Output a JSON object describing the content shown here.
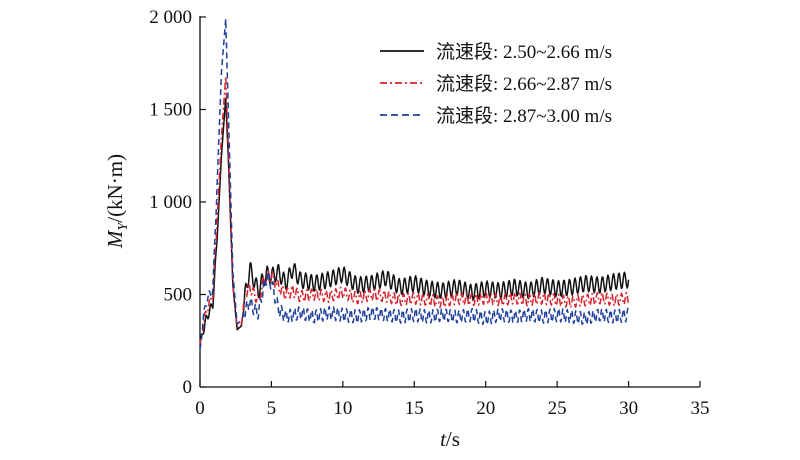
{
  "chart_data": {
    "type": "line",
    "title": "",
    "xlabel": {
      "italic": "t",
      "rest": "/s"
    },
    "ylabel": {
      "italic": "M",
      "sub": "Y",
      "rest": "/(kN·m)"
    },
    "xlim": [
      0,
      35
    ],
    "ylim": [
      0,
      2000
    ],
    "xticks": [
      0,
      5,
      10,
      15,
      20,
      25,
      30,
      35
    ],
    "xtick_labels": [
      "0",
      "5",
      "10",
      "15",
      "20",
      "25",
      "30",
      "35"
    ],
    "yticks": [
      0,
      500,
      1000,
      1500,
      2000
    ],
    "ytick_labels": [
      "0",
      "500",
      "1 000",
      "1 500",
      "2 000"
    ],
    "grid": false,
    "legend_position": "top-right",
    "series": [
      {
        "name": "流速段: 2.50~2.66 m/s",
        "color": "#111111",
        "dash": "solid",
        "peak": 1560,
        "steady_level": 540,
        "steady_amplitude": 55,
        "x": [
          0.0,
          0.2,
          0.5,
          0.9,
          1.2,
          1.5,
          1.8,
          2.0,
          2.3,
          2.6,
          2.9,
          3.2,
          3.5,
          3.8,
          4.1,
          4.4,
          4.7,
          5.0,
          5.5,
          6.0,
          6.5,
          7.0,
          8.0,
          9.0,
          10.0,
          11.0,
          12.0,
          13.0,
          14.0,
          15.0,
          16.0,
          17.0,
          18.0,
          19.0,
          20.0,
          21.0,
          22.0,
          23.0,
          24.0,
          25.0,
          26.0,
          27.0,
          28.0,
          29.0,
          30.0
        ],
        "y": [
          220,
          300,
          380,
          450,
          800,
          1250,
          1560,
          1200,
          550,
          310,
          330,
          520,
          640,
          570,
          520,
          580,
          610,
          600,
          620,
          560,
          640,
          580,
          560,
          580,
          610,
          550,
          560,
          590,
          540,
          560,
          530,
          520,
          540,
          510,
          530,
          520,
          540,
          520,
          550,
          530,
          540,
          560,
          550,
          570,
          580
        ]
      },
      {
        "name": "流速段: 2.66~2.87 m/s",
        "color": "#d8202a",
        "dash": "dashdot",
        "peak": 1680,
        "steady_level": 480,
        "steady_amplitude": 40,
        "x": [
          0.0,
          0.2,
          0.5,
          0.9,
          1.2,
          1.5,
          1.8,
          2.0,
          2.3,
          2.6,
          2.9,
          3.2,
          3.5,
          3.8,
          4.1,
          4.4,
          4.7,
          5.0,
          5.5,
          6.0,
          6.5,
          7.0,
          8.0,
          9.0,
          10.0,
          11.0,
          12.0,
          13.0,
          14.0,
          15.0,
          16.0,
          17.0,
          18.0,
          19.0,
          20.0,
          21.0,
          22.0,
          23.0,
          24.0,
          25.0,
          26.0,
          27.0,
          28.0,
          29.0,
          30.0
        ],
        "y": [
          200,
          330,
          420,
          500,
          900,
          1350,
          1680,
          1250,
          560,
          320,
          340,
          500,
          540,
          500,
          470,
          560,
          600,
          600,
          540,
          500,
          520,
          490,
          500,
          490,
          510,
          480,
          500,
          490,
          470,
          480,
          470,
          460,
          480,
          470,
          480,
          470,
          480,
          470,
          480,
          470,
          460,
          470,
          480,
          470,
          480
        ]
      },
      {
        "name": "流速段: 2.87~3.00 m/s",
        "color": "#1f3f9c",
        "dash": "dashed",
        "peak": 1990,
        "steady_level": 390,
        "steady_amplitude": 45,
        "x": [
          0.0,
          0.2,
          0.5,
          0.9,
          1.2,
          1.5,
          1.8,
          2.0,
          2.3,
          2.6,
          2.9,
          3.2,
          3.5,
          3.8,
          4.1,
          4.4,
          4.7,
          5.0,
          5.5,
          6.0,
          6.5,
          7.0,
          8.0,
          9.0,
          10.0,
          11.0,
          12.0,
          13.0,
          14.0,
          15.0,
          16.0,
          17.0,
          18.0,
          19.0,
          20.0,
          21.0,
          22.0,
          23.0,
          24.0,
          25.0,
          26.0,
          27.0,
          28.0,
          29.0,
          30.0
        ],
        "y": [
          180,
          360,
          480,
          520,
          1100,
          1700,
          1990,
          1450,
          620,
          340,
          360,
          420,
          460,
          420,
          400,
          520,
          600,
          560,
          420,
          380,
          390,
          400,
          380,
          400,
          390,
          380,
          400,
          390,
          380,
          390,
          380,
          390,
          380,
          390,
          370,
          390,
          380,
          390,
          380,
          390,
          380,
          370,
          390,
          380,
          390
        ]
      }
    ]
  }
}
